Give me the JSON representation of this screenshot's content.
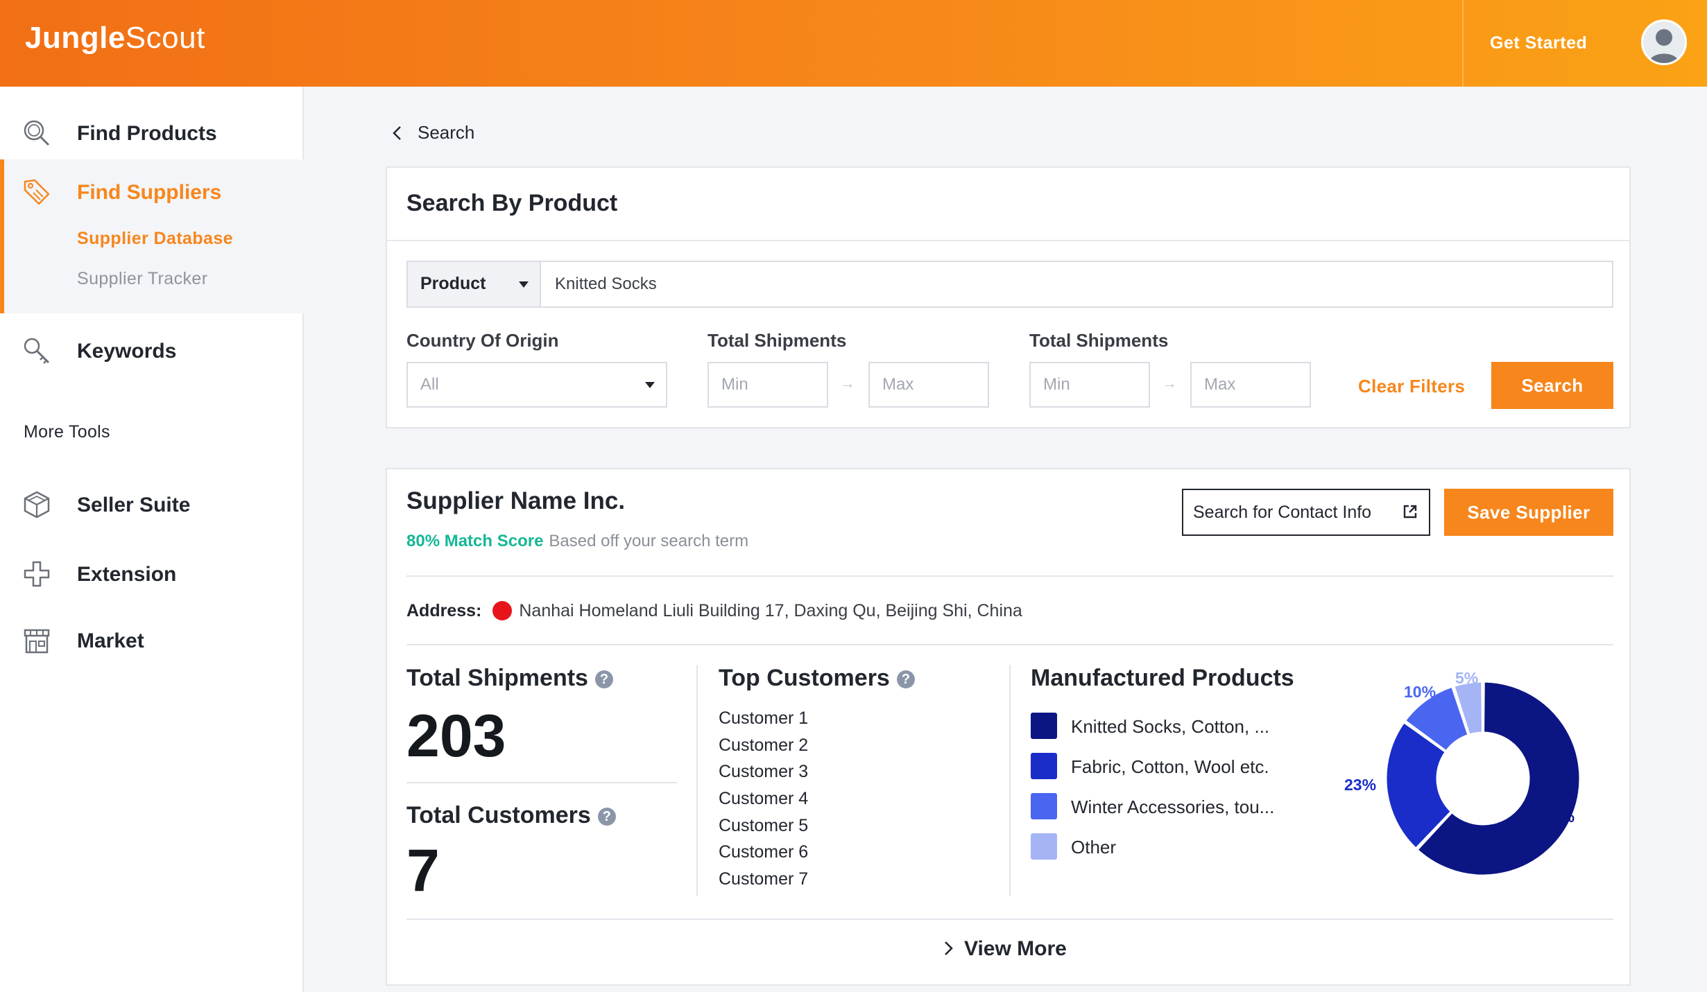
{
  "header": {
    "logo_bold": "Jungle",
    "logo_light": "Scout",
    "get_started": "Get Started"
  },
  "sidebar": {
    "items": [
      {
        "label": "Find Products",
        "icon": "search-icon"
      },
      {
        "label": "Find Suppliers",
        "icon": "tag-icon"
      },
      {
        "label": "Keywords",
        "icon": "key-search-icon"
      }
    ],
    "sub_items": [
      {
        "label": "Supplier Database",
        "active": true
      },
      {
        "label": "Supplier Tracker",
        "active": false
      }
    ],
    "more_tools_heading": "More Tools",
    "more_tools": [
      {
        "label": "Seller Suite",
        "icon": "cube-icon"
      },
      {
        "label": "Extension",
        "icon": "puzzle-icon"
      },
      {
        "label": "Market",
        "icon": "store-icon"
      }
    ]
  },
  "breadcrumb": {
    "label": "Search"
  },
  "search_panel": {
    "title": "Search By Product",
    "search_type": "Product",
    "search_value": "Knitted Socks",
    "country_label": "Country Of Origin",
    "country_value": "All",
    "shipments_label_1": "Total Shipments",
    "shipments_label_2": "Total Shipments",
    "min_placeholder": "Min",
    "max_placeholder": "Max",
    "arrow": "→",
    "clear_filters": "Clear Filters",
    "search_button": "Search"
  },
  "supplier": {
    "name": "Supplier Name Inc.",
    "match_score": "80% Match Score",
    "match_note": "Based off your search term",
    "contact_button": "Search for Contact Info",
    "save_button": "Save Supplier",
    "address_label": "Address:",
    "address": "Nanhai Homeland Liuli Building 17, Daxing Qu, Beijing Shi, China",
    "total_shipments_label": "Total Shipments",
    "total_shipments": "203",
    "total_customers_label": "Total Customers",
    "total_customers": "7",
    "top_customers_label": "Top Customers",
    "top_customers": [
      "Customer 1",
      "Customer 2",
      "Customer 3",
      "Customer 4",
      "Customer 5",
      "Customer 6",
      "Customer 7"
    ],
    "manufactured_label": "Manufactured Products",
    "help_glyph": "?",
    "view_more": "View More"
  },
  "chart_data": {
    "type": "pie",
    "donut": true,
    "categories": [
      "Knitted Socks, Cotton, ...",
      "Fabric, Cotton, Wool etc.",
      "Winter Accessories, tou...",
      "Other"
    ],
    "values": [
      62,
      23,
      10,
      5
    ],
    "labels": [
      "62%",
      "23%",
      "10%",
      "5%"
    ],
    "colors": [
      "#0c1584",
      "#1a2dc9",
      "#4a66f0",
      "#a4b4f5"
    ],
    "legend_placement": "left"
  },
  "colors": {
    "accent": "#f7861c",
    "match_green": "#15b795",
    "location_red": "#e8141c"
  }
}
